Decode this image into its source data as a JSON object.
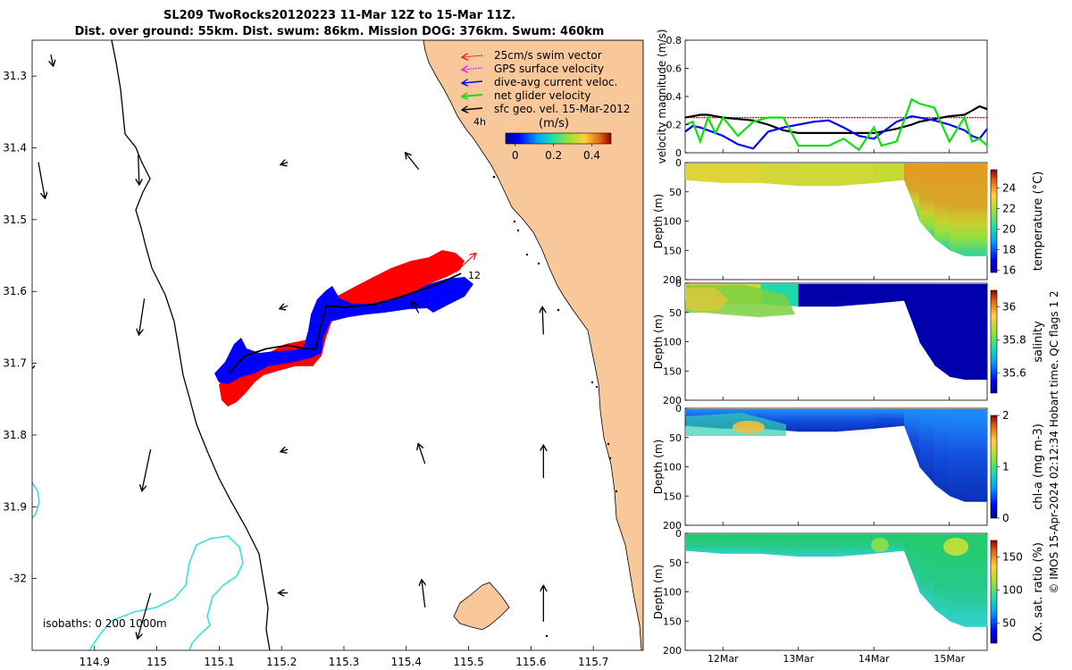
{
  "title": {
    "line1": "SL209 TwoRocks20120223 11-Mar 12Z to 15-Mar 11Z.",
    "line2": "Dist. over ground: 55km. Dist. swum: 86km. Mission DOG: 376km. Swum: 460km"
  },
  "copyright": "© IMOS 15-Apr-2024 02:12:34 Hobart time. QC flags 1  2",
  "colors": {
    "land": "#f9c89a",
    "isobath": "#36e0e0",
    "swim": "#ff0000",
    "track_blue": "#0000ff",
    "net": "#11dd11",
    "gps": "#ff00ff",
    "black": "#000000"
  },
  "chart_data": [
    {
      "type": "map",
      "xlim": [
        114.8,
        115.78
      ],
      "ylim": [
        -32.1,
        -31.25
      ],
      "y_axis_display": "positive degrees south (tick labels printed without sign except -32)",
      "x_ticks": [
        "114.9",
        "115",
        "115.1",
        "115.2",
        "115.3",
        "115.4",
        "115.5",
        "115.6",
        "115.7"
      ],
      "x_tick_values": [
        114.9,
        115.0,
        115.1,
        115.2,
        115.3,
        115.4,
        115.5,
        115.6,
        115.7
      ],
      "y_ticks": [
        "31.3",
        "31.4",
        "31.5",
        "31.6",
        "31.7",
        "31.8",
        "31.9",
        "-32"
      ],
      "y_tick_values": [
        -31.3,
        -31.4,
        -31.5,
        -31.6,
        -31.7,
        -31.8,
        -31.9,
        -32.0
      ],
      "legend": {
        "placement": "top-right",
        "entries": [
          {
            "label": "25cm/s swim vector",
            "color": "#ff0000",
            "style": "dotted"
          },
          {
            "label": "GPS surface velocity",
            "color": "#ff00ff",
            "style": "dotted"
          },
          {
            "label": "dive-avg current veloc.",
            "color": "#0000ff",
            "style": "solid"
          },
          {
            "label": "net glider velocity",
            "color": "#11dd11",
            "style": "solid"
          },
          {
            "label": "sfc geo. vel. 15-Mar-2012",
            "color": "#000000",
            "style": "solid"
          }
        ]
      },
      "colorbar": {
        "label": "(m/s)",
        "ticks": [
          "0",
          "0.2",
          "0.4"
        ],
        "tick_values": [
          0,
          0.2,
          0.4
        ],
        "range": [
          -0.05,
          0.5
        ]
      },
      "isobath_label": "isobaths: 0   200  1000m",
      "track_labels": [
        {
          "text": "4h",
          "lon": 115.49,
          "lat": -31.36
        },
        {
          "text": "12",
          "lon": 115.51,
          "lat": -31.585
        }
      ],
      "glider_track": [
        [
          115.115,
          -31.715
        ],
        [
          115.14,
          -31.69
        ],
        [
          115.175,
          -31.68
        ],
        [
          115.21,
          -31.675
        ],
        [
          115.24,
          -31.68
        ],
        [
          115.255,
          -31.68
        ],
        [
          115.262,
          -31.65
        ],
        [
          115.272,
          -31.62
        ],
        [
          115.3,
          -31.622
        ],
        [
          115.35,
          -31.618
        ],
        [
          115.4,
          -31.605
        ],
        [
          115.45,
          -31.59
        ],
        [
          115.488,
          -31.575
        ]
      ],
      "geo_vectors": [
        {
          "lon": 114.83,
          "lat": -31.27,
          "u": 0.02,
          "v": 0.1
        },
        {
          "lon": 114.81,
          "lat": -31.42,
          "u": 0.06,
          "v": 0.33
        },
        {
          "lon": 114.8,
          "lat": -31.7,
          "u": -0.02,
          "v": 0.06
        },
        {
          "lon": 114.97,
          "lat": -31.41,
          "u": 0.01,
          "v": 0.27
        },
        {
          "lon": 114.98,
          "lat": -31.61,
          "u": -0.05,
          "v": 0.33
        },
        {
          "lon": 114.99,
          "lat": -31.82,
          "u": -0.08,
          "v": 0.38
        },
        {
          "lon": 114.99,
          "lat": -32.02,
          "u": -0.12,
          "v": 0.42
        },
        {
          "lon": 115.21,
          "lat": -31.42,
          "u": -0.06,
          "v": 0.02
        },
        {
          "lon": 115.21,
          "lat": -31.62,
          "u": -0.07,
          "v": 0.025
        },
        {
          "lon": 115.21,
          "lat": -31.82,
          "u": -0.06,
          "v": 0.02
        },
        {
          "lon": 115.21,
          "lat": -32.02,
          "u": -0.08,
          "v": 0.0
        },
        {
          "lon": 115.42,
          "lat": -31.43,
          "u": -0.12,
          "v": -0.15
        },
        {
          "lon": 115.42,
          "lat": -31.63,
          "u": -0.06,
          "v": -0.1
        },
        {
          "lon": 115.43,
          "lat": -31.84,
          "u": -0.06,
          "v": -0.18
        },
        {
          "lon": 115.43,
          "lat": -32.04,
          "u": -0.03,
          "v": -0.25
        },
        {
          "lon": 115.62,
          "lat": -31.66,
          "u": -0.01,
          "v": -0.25
        },
        {
          "lon": 115.62,
          "lat": -31.86,
          "u": 0.0,
          "v": -0.3
        },
        {
          "lon": 115.62,
          "lat": -32.06,
          "u": 0.0,
          "v": -0.33
        }
      ]
    },
    {
      "type": "line",
      "ylabel": "velocity magnitude (m/s)",
      "ylim": [
        0,
        0.8
      ],
      "y_ticks": [
        "0",
        "0.2",
        "0.4",
        "0.6",
        "0.8"
      ],
      "x": [
        11.5,
        11.6,
        11.7,
        11.8,
        11.9,
        12.0,
        12.2,
        12.4,
        12.6,
        12.8,
        13.0,
        13.2,
        13.4,
        13.6,
        13.8,
        14.0,
        14.1,
        14.3,
        14.5,
        14.6,
        14.8,
        15.0,
        15.2,
        15.3,
        15.4,
        15.5
      ],
      "series": [
        {
          "color": "#ff0000",
          "values": [
            0.25,
            0.25,
            0.25,
            0.25,
            0.25,
            0.25,
            0.25,
            0.25,
            0.25,
            0.25,
            0.25,
            0.25,
            0.25,
            0.25,
            0.25,
            0.25,
            0.25,
            0.25,
            0.25,
            0.25,
            0.25,
            0.25,
            0.25,
            0.25,
            0.25,
            0.25
          ]
        },
        {
          "color": "#000000",
          "values": [
            0.25,
            0.26,
            0.27,
            0.27,
            0.26,
            0.25,
            0.24,
            0.23,
            0.2,
            0.16,
            0.14,
            0.14,
            0.14,
            0.14,
            0.14,
            0.14,
            0.15,
            0.17,
            0.2,
            0.22,
            0.24,
            0.26,
            0.27,
            0.3,
            0.33,
            0.31
          ]
        },
        {
          "color": "#0000ff",
          "values": [
            0.15,
            0.19,
            0.18,
            0.16,
            0.14,
            0.12,
            0.06,
            0.03,
            0.15,
            0.18,
            0.2,
            0.22,
            0.23,
            0.18,
            0.12,
            0.1,
            0.14,
            0.22,
            0.26,
            0.25,
            0.23,
            0.2,
            0.16,
            0.12,
            0.1,
            0.17
          ]
        },
        {
          "color": "#11dd11",
          "values": [
            0.2,
            0.22,
            0.08,
            0.25,
            0.14,
            0.25,
            0.12,
            0.22,
            0.25,
            0.25,
            0.05,
            0.05,
            0.05,
            0.1,
            0.02,
            0.18,
            0.05,
            0.08,
            0.38,
            0.35,
            0.32,
            0.08,
            0.25,
            0.08,
            0.1,
            0.05
          ]
        }
      ]
    },
    {
      "type": "heatmap",
      "ylabel": "Depth (m)",
      "ylim": [
        200,
        0
      ],
      "y_ticks": [
        "0",
        "50",
        "100",
        "150",
        "200"
      ],
      "colorbar": {
        "label": "temperature (°C)",
        "ticks": [
          "16",
          "18",
          "20",
          "22",
          "24"
        ],
        "tick_values": [
          16,
          18,
          20,
          22,
          24
        ],
        "range": [
          15.8,
          25.8
        ]
      },
      "x": [
        11.5,
        12.0,
        12.5,
        13.0,
        13.5,
        14.0,
        14.4,
        14.6,
        14.8,
        15.0,
        15.2,
        15.5
      ],
      "bottom_depth": [
        30,
        35,
        35,
        40,
        40,
        35,
        30,
        100,
        130,
        150,
        160,
        160
      ],
      "values": [
        22.8,
        22.8,
        22.6,
        22.5,
        22.5,
        22.4,
        22.6,
        22.0,
        21.0,
        19.5,
        18.5,
        17.5
      ]
    },
    {
      "type": "heatmap",
      "ylabel": "Depth (m)",
      "ylim": [
        200,
        0
      ],
      "y_ticks": [
        "0",
        "50",
        "100",
        "150",
        "200"
      ],
      "colorbar": {
        "label": "salinity",
        "ticks": [
          "35.6",
          "35.8",
          "36"
        ],
        "tick_values": [
          35.6,
          35.8,
          36.0
        ],
        "range": [
          35.48,
          36.1
        ]
      },
      "x": [
        11.5,
        12.0,
        12.5,
        13.0,
        13.5,
        14.0,
        14.4,
        14.6,
        14.8,
        15.0,
        15.2,
        15.5
      ],
      "bottom_depth": [
        30,
        35,
        35,
        40,
        40,
        35,
        30,
        100,
        140,
        160,
        165,
        165
      ],
      "values": [
        35.95,
        35.9,
        35.75,
        35.5,
        35.5,
        35.5,
        35.5,
        35.5,
        35.5,
        35.5,
        35.5,
        35.5
      ]
    },
    {
      "type": "heatmap",
      "ylabel": "Depth (m)",
      "ylim": [
        200,
        0
      ],
      "y_ticks": [
        "0",
        "50",
        "100",
        "150",
        "200"
      ],
      "colorbar": {
        "label": "chl-a (mg m-3)",
        "ticks": [
          "0",
          "1",
          "2"
        ],
        "tick_values": [
          0,
          1,
          2
        ],
        "range": [
          0,
          2
        ]
      },
      "x": [
        11.5,
        12.0,
        12.5,
        13.0,
        13.5,
        14.0,
        14.4,
        14.6,
        14.8,
        15.0,
        15.2,
        15.5
      ],
      "bottom_depth": [
        30,
        35,
        35,
        40,
        40,
        35,
        30,
        100,
        130,
        150,
        160,
        160
      ],
      "values": [
        0.7,
        1.0,
        0.5,
        0.35,
        0.35,
        0.35,
        0.35,
        0.25,
        0.2,
        0.2,
        0.2,
        0.2
      ]
    },
    {
      "type": "heatmap",
      "ylabel": "Depth (m)",
      "ylim": [
        200,
        0
      ],
      "y_ticks": [
        "0",
        "50",
        "100",
        "150",
        "200"
      ],
      "colorbar": {
        "label": "Ox. sat. ratio (%)",
        "ticks": [
          "50",
          "100",
          "150"
        ],
        "tick_values": [
          50,
          100,
          150
        ],
        "range": [
          20,
          175
        ]
      },
      "x": [
        11.5,
        12.0,
        12.5,
        13.0,
        13.5,
        14.0,
        14.4,
        14.6,
        14.8,
        15.0,
        15.2,
        15.5
      ],
      "bottom_depth": [
        30,
        35,
        35,
        40,
        40,
        35,
        30,
        100,
        130,
        150,
        160,
        160
      ],
      "values": [
        110,
        108,
        108,
        108,
        108,
        110,
        112,
        106,
        105,
        103,
        100,
        100
      ]
    }
  ],
  "time_axis": {
    "ticks": [
      "12Mar",
      "13Mar",
      "14Mar",
      "15Mar"
    ],
    "tick_values": [
      12,
      13,
      14,
      15
    ],
    "xlim": [
      11.5,
      15.5
    ]
  }
}
